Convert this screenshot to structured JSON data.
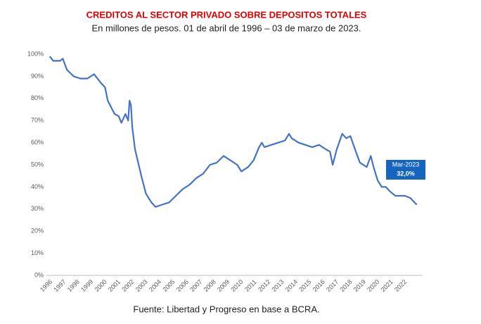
{
  "chart_data": {
    "type": "line",
    "title": "CREDITOS AL SECTOR PRIVADO SOBRE DEPOSITOS TOTALES",
    "subtitle": "En millones de pesos. 01 de abril de 1996 – 03 de marzo de 2023.",
    "source": "Fuente: Libertad y Progreso en base a BCRA.",
    "annotation": {
      "label": "Mar-2023",
      "value_label": "32,0%"
    },
    "xlim": [
      1996,
      2023.6
    ],
    "xticks": [
      1996,
      1997,
      1998,
      1999,
      2000,
      2001,
      2002,
      2003,
      2004,
      2005,
      2006,
      2007,
      2008,
      2009,
      2010,
      2011,
      2012,
      2013,
      2014,
      2015,
      2016,
      2017,
      2018,
      2019,
      2020,
      2021,
      2022
    ],
    "ylim": [
      0,
      100
    ],
    "yticks": [
      {
        "value": 0,
        "label": "0%"
      },
      {
        "value": 10,
        "label": "10%"
      },
      {
        "value": 20,
        "label": "20%"
      },
      {
        "value": 30,
        "label": "30%"
      },
      {
        "value": 40,
        "label": "40%"
      },
      {
        "value": 50,
        "label": "50%"
      },
      {
        "value": 60,
        "label": "60%"
      },
      {
        "value": 70,
        "label": "70%"
      },
      {
        "value": 80,
        "label": "80%"
      },
      {
        "value": 90,
        "label": "90%"
      },
      {
        "value": 100,
        "label": "100%"
      }
    ],
    "grid": false,
    "color": "#4472c4",
    "x": [
      1996.25,
      1996.5,
      1997.0,
      1997.2,
      1997.5,
      1998.0,
      1998.5,
      1999.0,
      1999.5,
      2000.0,
      2000.3,
      2000.5,
      2001.0,
      2001.3,
      2001.5,
      2001.8,
      2002.0,
      2002.1,
      2002.2,
      2002.3,
      2002.5,
      2003.0,
      2003.3,
      2003.7,
      2004.0,
      2004.5,
      2005.0,
      2005.5,
      2006.0,
      2006.5,
      2007.0,
      2007.5,
      2008.0,
      2008.5,
      2009.0,
      2009.5,
      2010.0,
      2010.3,
      2010.8,
      2011.2,
      2011.6,
      2011.8,
      2012.0,
      2012.5,
      2013.0,
      2013.5,
      2013.8,
      2014.0,
      2014.5,
      2015.0,
      2015.5,
      2016.0,
      2016.5,
      2016.8,
      2017.0,
      2017.3,
      2017.7,
      2018.0,
      2018.3,
      2018.7,
      2019.0,
      2019.5,
      2019.8,
      2020.0,
      2020.3,
      2020.6,
      2020.9,
      2021.2,
      2021.6,
      2022.0,
      2022.3,
      2022.7,
      2023.0,
      2023.17
    ],
    "values": [
      99,
      97,
      97,
      98,
      93,
      90,
      89,
      89,
      91,
      87,
      85,
      79,
      73,
      72,
      69,
      73,
      70,
      79,
      77,
      67,
      57,
      44,
      37,
      33,
      31,
      32,
      33,
      36,
      39,
      41,
      44,
      46,
      50,
      51,
      54,
      52,
      50,
      47,
      49,
      52,
      58,
      60,
      58,
      59,
      60,
      61,
      64,
      62,
      60,
      59,
      58,
      59,
      57,
      56,
      50,
      57,
      64,
      62,
      63,
      56,
      51,
      49,
      54,
      49,
      43,
      40,
      40,
      38,
      36,
      36,
      36,
      35,
      33,
      32
    ]
  }
}
